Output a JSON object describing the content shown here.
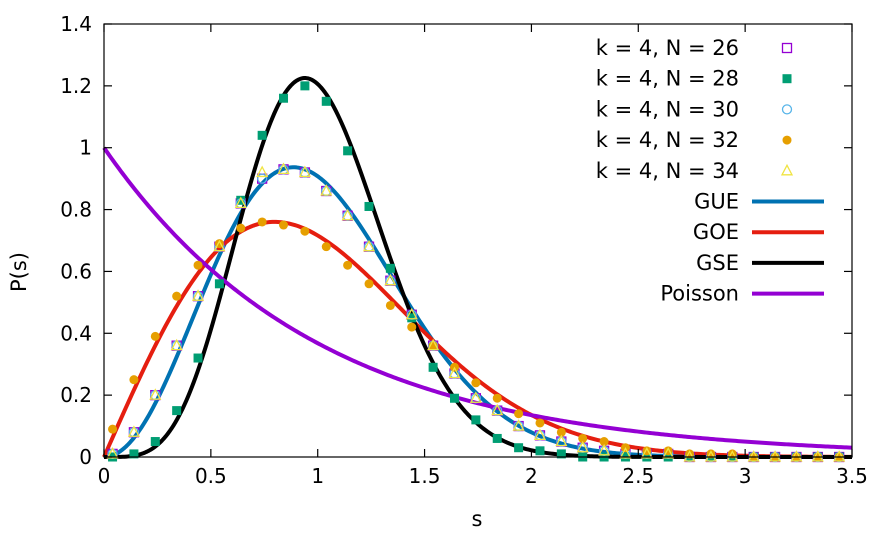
{
  "chart_data": {
    "type": "line",
    "xlabel": "s",
    "ylabel": "P(s)",
    "xlim": [
      0,
      3.5
    ],
    "ylim": [
      0,
      1.4
    ],
    "x_ticks": [
      0,
      0.5,
      1,
      1.5,
      2,
      2.5,
      3,
      3.5
    ],
    "x_tick_labels": [
      "0",
      "0.5",
      "1",
      "1.5",
      "2",
      "2.5",
      "3",
      "3.5"
    ],
    "y_ticks": [
      0,
      0.2,
      0.4,
      0.6,
      0.8,
      1,
      1.2,
      1.4
    ],
    "y_tick_labels": [
      "0",
      "0.2",
      "0.4",
      "0.6",
      "0.8",
      "1",
      "1.2",
      "1.4"
    ],
    "grid": false,
    "legend_position": "top-right",
    "curves": [
      {
        "name": "GUE",
        "color": "#0072b2",
        "formula": "GUE"
      },
      {
        "name": "GOE",
        "color": "#e51e10",
        "formula": "GOE"
      },
      {
        "name": "GSE",
        "color": "#000000",
        "formula": "GSE"
      },
      {
        "name": "Poisson",
        "color": "#9400d3",
        "formula": "Poisson"
      }
    ],
    "series": [
      {
        "name": "k = 4, N = 26",
        "marker": "open-square",
        "color": "#9400d3",
        "x": [
          0.04,
          0.14,
          0.24,
          0.34,
          0.44,
          0.54,
          0.64,
          0.74,
          0.84,
          0.94,
          1.04,
          1.14,
          1.24,
          1.34,
          1.44,
          1.54,
          1.64,
          1.74,
          1.84,
          1.94,
          2.04,
          2.14,
          2.24,
          2.34,
          2.44,
          2.54,
          2.64,
          2.74,
          2.84,
          2.94,
          3.04,
          3.14,
          3.24,
          3.34,
          3.44
        ],
        "y": [
          0.01,
          0.08,
          0.2,
          0.36,
          0.52,
          0.68,
          0.82,
          0.9,
          0.93,
          0.92,
          0.86,
          0.78,
          0.68,
          0.57,
          0.46,
          0.36,
          0.27,
          0.19,
          0.15,
          0.1,
          0.07,
          0.05,
          0.03,
          0.02,
          0.01,
          0.01,
          0.01,
          0.0,
          0.0,
          0.0,
          0.0,
          0.0,
          0.0,
          0.0,
          0.0
        ]
      },
      {
        "name": "k = 4, N = 28",
        "marker": "filled-square",
        "color": "#009e73",
        "x": [
          0.04,
          0.14,
          0.24,
          0.34,
          0.44,
          0.54,
          0.64,
          0.74,
          0.84,
          0.94,
          1.04,
          1.14,
          1.24,
          1.34,
          1.44,
          1.54,
          1.64,
          1.74,
          1.84,
          1.94,
          2.04,
          2.14,
          2.24,
          2.34,
          2.44,
          2.54,
          2.64,
          2.74,
          2.84,
          2.94,
          3.04,
          3.14,
          3.24,
          3.34,
          3.44
        ],
        "y": [
          0.0,
          0.01,
          0.05,
          0.15,
          0.32,
          0.56,
          0.83,
          1.04,
          1.16,
          1.2,
          1.15,
          0.99,
          0.81,
          0.61,
          0.45,
          0.29,
          0.19,
          0.12,
          0.06,
          0.03,
          0.02,
          0.01,
          0.0,
          0.0,
          0.0,
          0.0,
          0.0,
          0.0,
          0.0,
          0.0,
          0.0,
          0.0,
          0.0,
          0.0,
          0.0
        ]
      },
      {
        "name": "k = 4, N = 30",
        "marker": "open-circle",
        "color": "#56b4e9",
        "x": [
          0.04,
          0.14,
          0.24,
          0.34,
          0.44,
          0.54,
          0.64,
          0.74,
          0.84,
          0.94,
          1.04,
          1.14,
          1.24,
          1.34,
          1.44,
          1.54,
          1.64,
          1.74,
          1.84,
          1.94,
          2.04,
          2.14,
          2.24,
          2.34,
          2.44,
          2.54,
          2.64,
          2.74,
          2.84,
          2.94,
          3.04,
          3.14,
          3.24,
          3.34,
          3.44
        ],
        "y": [
          0.01,
          0.08,
          0.2,
          0.36,
          0.52,
          0.68,
          0.82,
          0.9,
          0.93,
          0.92,
          0.86,
          0.78,
          0.68,
          0.57,
          0.46,
          0.36,
          0.27,
          0.19,
          0.15,
          0.1,
          0.07,
          0.05,
          0.03,
          0.02,
          0.01,
          0.01,
          0.01,
          0.0,
          0.0,
          0.0,
          0.0,
          0.0,
          0.0,
          0.0,
          0.0
        ]
      },
      {
        "name": "k = 4, N = 32",
        "marker": "filled-circle",
        "color": "#e69f00",
        "x": [
          0.04,
          0.14,
          0.24,
          0.34,
          0.44,
          0.54,
          0.64,
          0.74,
          0.84,
          0.94,
          1.04,
          1.14,
          1.24,
          1.34,
          1.44,
          1.54,
          1.64,
          1.74,
          1.84,
          1.94,
          2.04,
          2.14,
          2.24,
          2.34,
          2.44,
          2.54,
          2.64,
          2.74,
          2.84,
          2.94,
          3.04,
          3.14,
          3.24,
          3.34,
          3.44
        ],
        "y": [
          0.09,
          0.25,
          0.39,
          0.52,
          0.62,
          0.69,
          0.74,
          0.76,
          0.75,
          0.73,
          0.68,
          0.62,
          0.56,
          0.49,
          0.42,
          0.36,
          0.29,
          0.24,
          0.19,
          0.14,
          0.11,
          0.08,
          0.06,
          0.05,
          0.03,
          0.02,
          0.02,
          0.01,
          0.01,
          0.01,
          0.0,
          0.0,
          0.0,
          0.0,
          0.0
        ]
      },
      {
        "name": "k = 4, N = 34",
        "marker": "open-triangle",
        "color": "#f0e442",
        "x": [
          0.04,
          0.14,
          0.24,
          0.34,
          0.44,
          0.54,
          0.64,
          0.74,
          0.84,
          0.94,
          1.04,
          1.14,
          1.24,
          1.34,
          1.44,
          1.54,
          1.64,
          1.74,
          1.84,
          1.94,
          2.04,
          2.14,
          2.24,
          2.34,
          2.44,
          2.54,
          2.64,
          2.74,
          2.84,
          2.94,
          3.04,
          3.14,
          3.24,
          3.34,
          3.44
        ],
        "y": [
          0.01,
          0.08,
          0.2,
          0.36,
          0.52,
          0.68,
          0.82,
          0.92,
          0.93,
          0.92,
          0.86,
          0.78,
          0.68,
          0.57,
          0.46,
          0.36,
          0.27,
          0.19,
          0.15,
          0.1,
          0.07,
          0.05,
          0.03,
          0.02,
          0.01,
          0.01,
          0.01,
          0.0,
          0.0,
          0.0,
          0.0,
          0.0,
          0.0,
          0.0,
          0.0
        ]
      }
    ],
    "legend_order": [
      "k = 4, N = 26",
      "k = 4, N = 28",
      "k = 4, N = 30",
      "k = 4, N = 32",
      "k = 4, N = 34",
      "GUE",
      "GOE",
      "GSE",
      "Poisson"
    ]
  }
}
